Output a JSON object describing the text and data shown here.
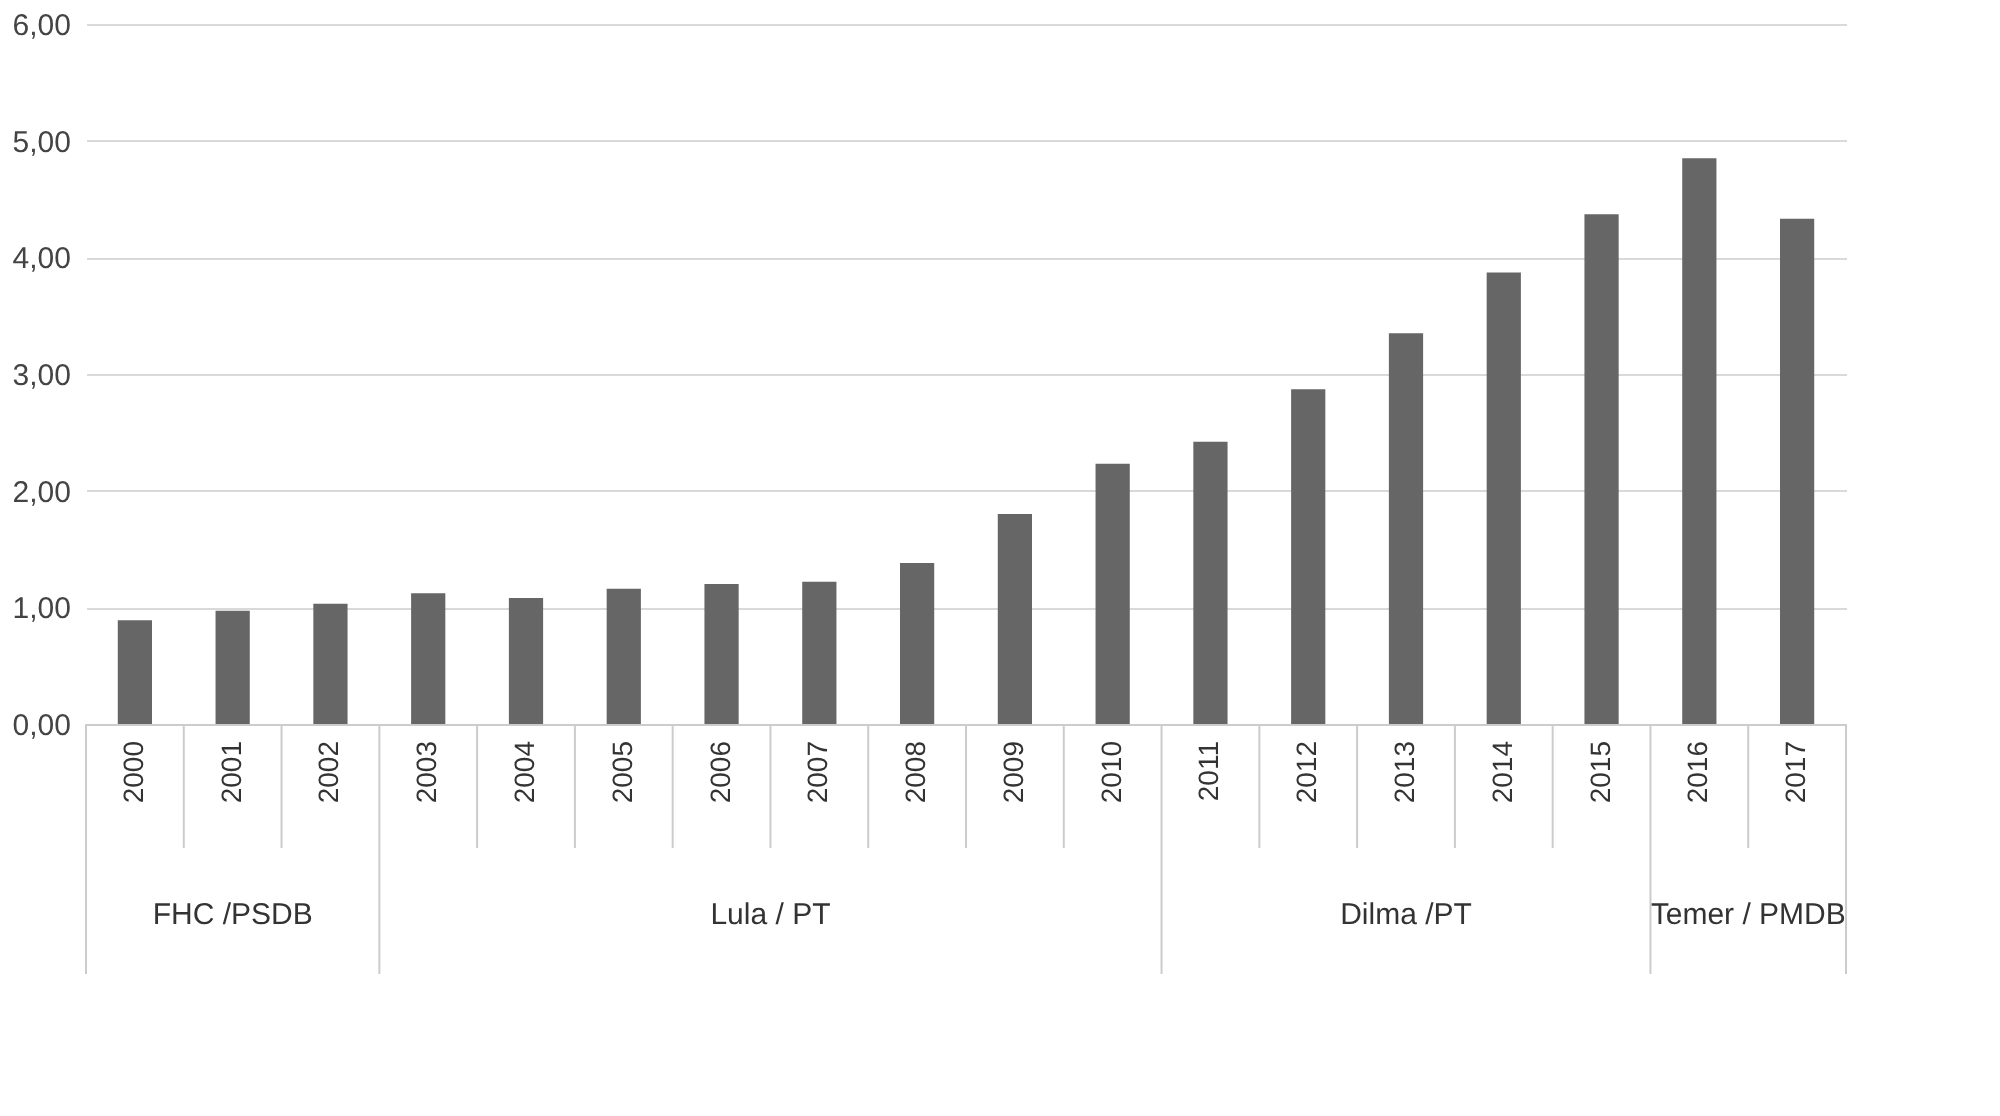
{
  "chart_data": {
    "type": "bar",
    "categories": [
      "2000",
      "2001",
      "2002",
      "2003",
      "2004",
      "2005",
      "2006",
      "2007",
      "2008",
      "2009",
      "2010",
      "2011",
      "2012",
      "2013",
      "2014",
      "2015",
      "2016",
      "2017"
    ],
    "values": [
      0.89,
      0.97,
      1.03,
      1.12,
      1.08,
      1.16,
      1.2,
      1.22,
      1.38,
      1.8,
      2.23,
      2.42,
      2.87,
      3.35,
      3.87,
      4.37,
      4.85,
      4.33
    ],
    "color": "#666666",
    "ylim": [
      0,
      6
    ],
    "yticks": [
      {
        "value": 0,
        "label": "0,00"
      },
      {
        "value": 1,
        "label": "1,00"
      },
      {
        "value": 2,
        "label": "2,00"
      },
      {
        "value": 3,
        "label": "3,00"
      },
      {
        "value": 4,
        "label": "4,00"
      },
      {
        "value": 5,
        "label": "5,00"
      },
      {
        "value": 6,
        "label": "6,00"
      }
    ],
    "grid": "y",
    "annotations": [
      "FHC /PSDB",
      "Lula / PT",
      "Dilma /PT",
      "Temer / PMDB"
    ]
  }
}
